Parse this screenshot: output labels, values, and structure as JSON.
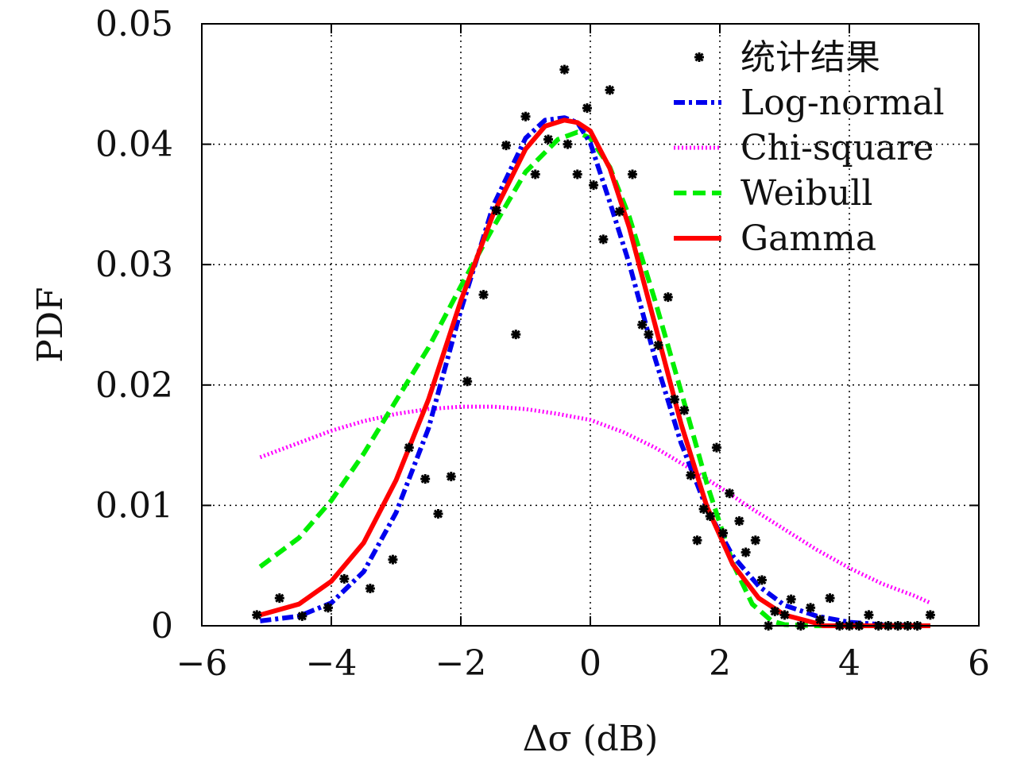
{
  "chart_data": {
    "type": "scatter",
    "xlabel": "Δσ (dB)",
    "ylabel": "PDF",
    "xlim": [
      -6,
      6
    ],
    "ylim": [
      0,
      0.05
    ],
    "x_ticks": [
      -6,
      -4,
      -2,
      0,
      2,
      4,
      6
    ],
    "x_tick_labels": [
      "−6",
      "−4",
      "−2",
      "0",
      "2",
      "4",
      "6"
    ],
    "y_ticks": [
      0,
      0.01,
      0.02,
      0.03,
      0.04,
      0.05
    ],
    "y_tick_labels": [
      "0",
      "0.01",
      "0.02",
      "0.03",
      "0.04",
      "0.05"
    ],
    "grid": true,
    "legend_position": "top-right",
    "legend": [
      "统计结果",
      "Log-normal",
      "Chi-square",
      "Weibull",
      "Gamma"
    ],
    "series": [
      {
        "name": "统计结果",
        "kind": "points",
        "color": "#000000",
        "x": [
          -5.15,
          -4.8,
          -4.45,
          -4.05,
          -3.8,
          -3.4,
          -3.05,
          -2.8,
          -2.55,
          -2.35,
          -2.15,
          -1.9,
          -1.65,
          -1.45,
          -1.3,
          -1.15,
          -1.0,
          -0.85,
          -0.65,
          -0.4,
          -0.35,
          -0.2,
          -0.05,
          0.05,
          0.2,
          0.3,
          0.45,
          0.65,
          0.8,
          0.9,
          1.05,
          1.2,
          1.3,
          1.45,
          1.55,
          1.65,
          1.75,
          1.85,
          1.95,
          2.05,
          2.15,
          2.3,
          2.4,
          2.55,
          2.65,
          2.75,
          2.85,
          3.0,
          3.1,
          3.25,
          3.4,
          3.55,
          3.7,
          3.85,
          4.0,
          4.15,
          4.3,
          4.45,
          4.6,
          4.75,
          4.9,
          5.05,
          5.25
        ],
        "y": [
          0.0009,
          0.0023,
          0.0008,
          0.0015,
          0.0039,
          0.0031,
          0.0055,
          0.0148,
          0.0122,
          0.0093,
          0.0124,
          0.0203,
          0.0275,
          0.0345,
          0.0399,
          0.0242,
          0.0423,
          0.0375,
          0.0404,
          0.0462,
          0.04,
          0.0375,
          0.043,
          0.0366,
          0.0321,
          0.0445,
          0.0344,
          0.0375,
          0.025,
          0.0242,
          0.0233,
          0.0273,
          0.0188,
          0.0179,
          0.0125,
          0.0071,
          0.0097,
          0.0091,
          0.0148,
          0.0077,
          0.011,
          0.0087,
          0.0061,
          0.0071,
          0.0038,
          0.0,
          0.0012,
          0.0009,
          0.0022,
          0.0,
          0.0015,
          0.0005,
          0.0023,
          0.0,
          0.0,
          0.0,
          0.0009,
          0.0,
          0.0,
          0.0,
          0.0,
          0.0,
          0.0009
        ]
      },
      {
        "name": "Log-normal",
        "kind": "curve",
        "color": "#0000ee",
        "x": [
          -5.1,
          -4.5,
          -4.0,
          -3.5,
          -3.0,
          -2.5,
          -2.0,
          -1.5,
          -1.0,
          -0.7,
          -0.4,
          -0.2,
          0.0,
          0.3,
          0.6,
          1.0,
          1.4,
          1.8,
          2.2,
          2.6,
          3.0,
          3.5,
          4.0,
          4.5,
          5.0,
          5.25
        ],
        "y": [
          0.0004,
          0.0008,
          0.0019,
          0.0045,
          0.0094,
          0.0164,
          0.0262,
          0.0349,
          0.0405,
          0.042,
          0.0422,
          0.0418,
          0.0401,
          0.0352,
          0.0301,
          0.0222,
          0.0152,
          0.0097,
          0.0058,
          0.0033,
          0.0017,
          0.0008,
          0.0003,
          0.0001,
          0.0,
          0.0
        ]
      },
      {
        "name": "Chi-square",
        "kind": "curve",
        "color": "#ff00ff",
        "x": [
          -5.1,
          -4.5,
          -4.0,
          -3.5,
          -3.0,
          -2.5,
          -2.0,
          -1.5,
          -1.0,
          -0.5,
          0.0,
          0.5,
          1.0,
          1.5,
          2.0,
          2.5,
          3.0,
          3.5,
          4.0,
          4.5,
          5.0,
          5.25
        ],
        "y": [
          0.014,
          0.0152,
          0.0162,
          0.017,
          0.0176,
          0.018,
          0.0182,
          0.0182,
          0.018,
          0.0176,
          0.0171,
          0.0161,
          0.0148,
          0.0132,
          0.0115,
          0.0097,
          0.008,
          0.0063,
          0.0048,
          0.0035,
          0.0025,
          0.0019
        ]
      },
      {
        "name": "Weibull",
        "kind": "curve",
        "color": "#00ee00",
        "x": [
          -5.1,
          -4.5,
          -4.0,
          -3.5,
          -3.0,
          -2.5,
          -2.0,
          -1.5,
          -1.0,
          -0.5,
          -0.2,
          0.0,
          0.3,
          0.6,
          1.0,
          1.4,
          1.8,
          2.2,
          2.5,
          2.8,
          3.0,
          3.5,
          4.0,
          4.5,
          5.0,
          5.25
        ],
        "y": [
          0.0049,
          0.0073,
          0.0104,
          0.0143,
          0.0187,
          0.0231,
          0.0282,
          0.0331,
          0.0377,
          0.0404,
          0.041,
          0.0405,
          0.0381,
          0.034,
          0.027,
          0.0195,
          0.0118,
          0.0052,
          0.0018,
          0.0004,
          0.0001,
          0.0,
          0.0,
          0.0,
          0.0,
          0.0
        ]
      },
      {
        "name": "Gamma",
        "kind": "curve",
        "color": "#ff0000",
        "x": [
          -5.1,
          -4.5,
          -4.0,
          -3.5,
          -3.0,
          -2.5,
          -2.0,
          -1.5,
          -1.0,
          -0.7,
          -0.4,
          -0.2,
          0.0,
          0.3,
          0.6,
          1.0,
          1.4,
          1.8,
          2.2,
          2.6,
          3.0,
          3.5,
          3.6,
          4.0,
          4.5,
          5.0,
          5.25
        ],
        "y": [
          0.0009,
          0.0018,
          0.0037,
          0.0069,
          0.0121,
          0.0188,
          0.027,
          0.0342,
          0.0396,
          0.0415,
          0.042,
          0.0418,
          0.0411,
          0.038,
          0.0331,
          0.025,
          0.0168,
          0.0099,
          0.0051,
          0.0023,
          0.0009,
          0.0002,
          0.0,
          0.0,
          0.0,
          0.0,
          0.0
        ]
      }
    ]
  }
}
